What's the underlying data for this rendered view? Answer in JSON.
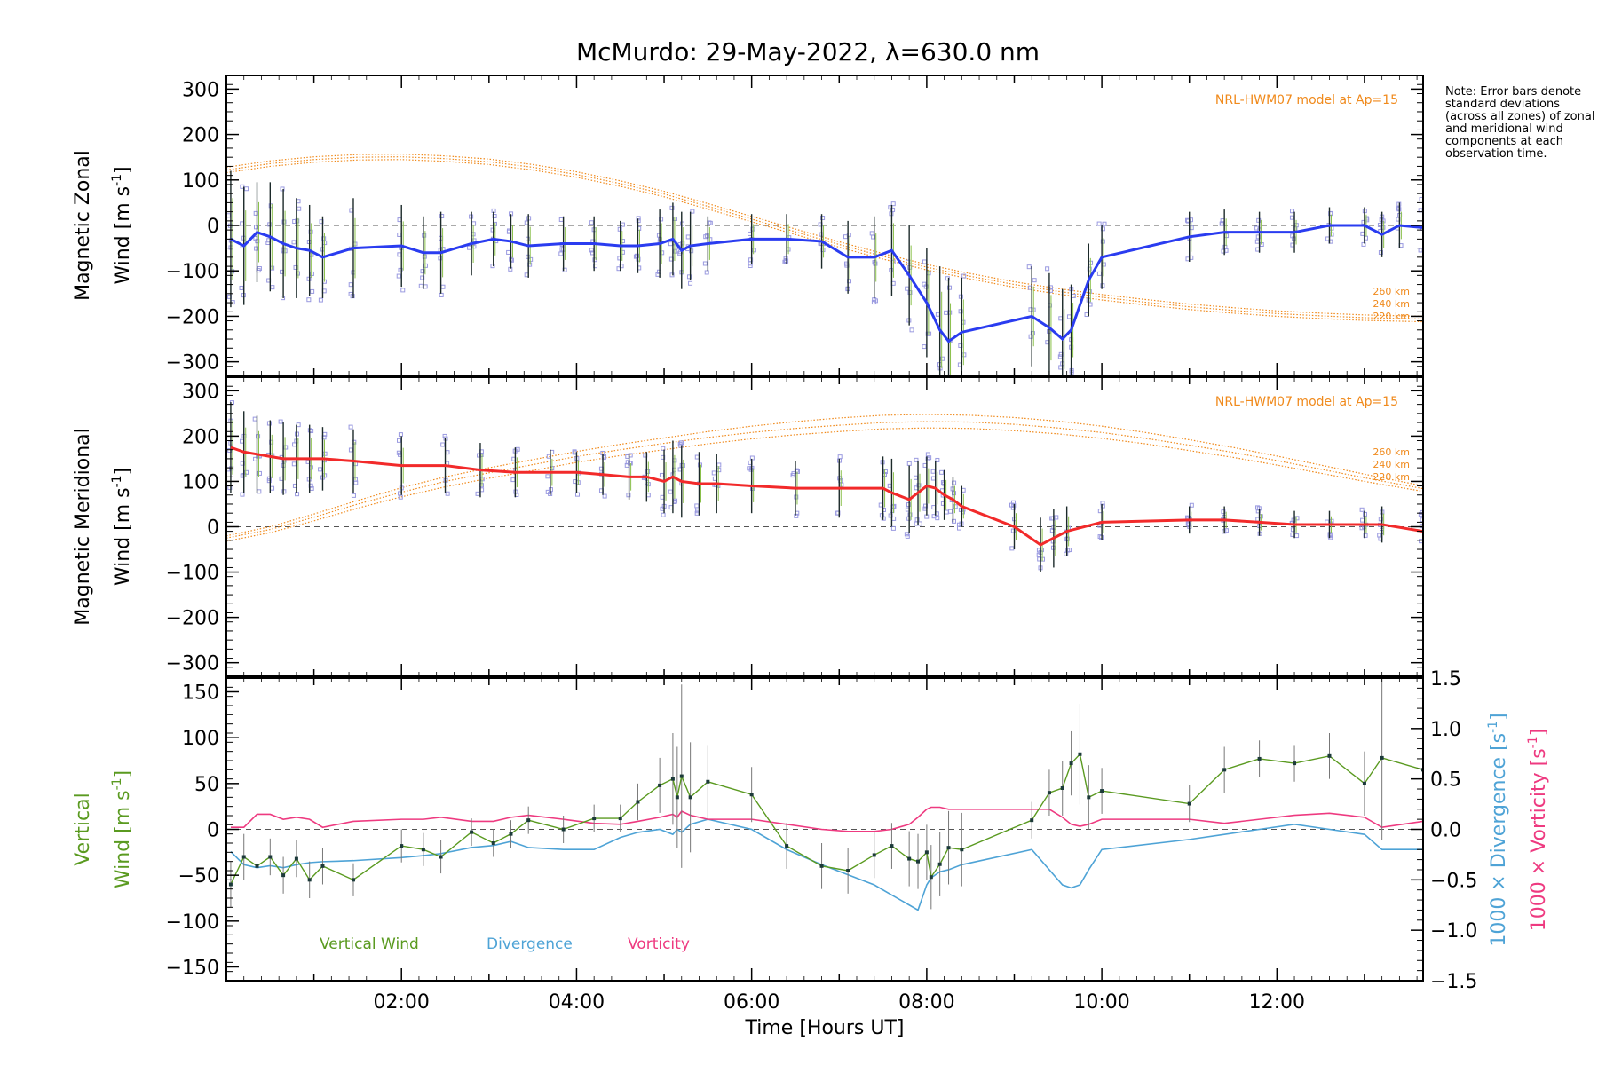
{
  "title": "McMurdo: 29-May-2022, λ=630.0 nm",
  "note": "Note: Error bars denote standard deviations (across all zones) of zonal and meridional wind components at each observation time.",
  "colors": {
    "zonal": "#2a3cf0",
    "meridional": "#f22a2a",
    "model": "#f08a1c",
    "scatter": "#9a9ae0",
    "vertical": "#5a9a20",
    "divergence": "#4ea3d6",
    "vorticity": "#ee3a80",
    "errorbar": "#1c2a2a"
  },
  "panels": {
    "zonal": {
      "ylabel_line1": "Magnetic Zonal",
      "ylabel_line2": "Wind",
      "unit": "[m s",
      "unit_exp": "-1",
      "unit_close": "]"
    },
    "meridional": {
      "ylabel_line1": "Magnetic Meridional",
      "ylabel_line2": "Wind",
      "unit": "[m s",
      "unit_exp": "-1",
      "unit_close": "]"
    },
    "vertical": {
      "ylabel_line1": "Vertical",
      "ylabel_line2": "Wind",
      "unit": "[m s",
      "unit_exp": "-1",
      "unit_close": "]"
    },
    "divergence_label": "1000 × Divergence [s",
    "vorticity_label": "1000 × Vorticity [s",
    "exp": "-1",
    "close": "]"
  },
  "model": {
    "label": "NRL-HWM07 model at Ap=15",
    "altitudes": [
      "260 km",
      "240 km",
      "220 km"
    ]
  },
  "legend": [
    "Vertical Wind",
    "Divergence",
    "Vorticity"
  ],
  "xaxis": {
    "label": "Time [Hours UT]",
    "ticks": [
      "02:00",
      "04:00",
      "06:00",
      "08:00",
      "10:00",
      "12:00"
    ],
    "range": [
      0,
      13.67
    ]
  },
  "chart_data": [
    {
      "type": "line",
      "name": "zonal",
      "ylim": [
        -330,
        330
      ],
      "yticks": [
        300,
        200,
        100,
        0,
        -100,
        -200,
        -300
      ],
      "x": [
        0.05,
        0.2,
        0.35,
        0.5,
        0.65,
        0.8,
        0.95,
        1.1,
        1.45,
        2.0,
        2.25,
        2.45,
        2.8,
        3.05,
        3.25,
        3.45,
        3.85,
        4.2,
        4.5,
        4.7,
        4.95,
        5.1,
        5.2,
        5.3,
        5.5,
        6.0,
        6.4,
        6.8,
        7.1,
        7.4,
        7.6,
        7.8,
        8.0,
        8.15,
        8.25,
        8.4,
        9.2,
        9.4,
        9.55,
        9.65,
        9.85,
        10.0,
        11.0,
        11.4,
        11.8,
        12.2,
        12.6,
        13.0,
        13.2,
        13.4,
        13.67
      ],
      "zonal": [
        -30,
        -45,
        -15,
        -25,
        -40,
        -50,
        -55,
        -70,
        -50,
        -45,
        -60,
        -60,
        -40,
        -30,
        -35,
        -45,
        -40,
        -40,
        -45,
        -45,
        -40,
        -30,
        -55,
        -45,
        -40,
        -30,
        -30,
        -35,
        -70,
        -70,
        -55,
        -110,
        -170,
        -230,
        -255,
        -235,
        -200,
        -225,
        -250,
        -230,
        -120,
        -70,
        -25,
        -15,
        -15,
        -15,
        0,
        0,
        -20,
        0,
        -5
      ],
      "zonal_err": [
        150,
        130,
        110,
        120,
        120,
        110,
        100,
        90,
        110,
        90,
        80,
        90,
        70,
        60,
        60,
        70,
        60,
        60,
        55,
        60,
        75,
        80,
        85,
        75,
        60,
        55,
        55,
        60,
        80,
        90,
        100,
        110,
        120,
        140,
        140,
        120,
        110,
        120,
        110,
        100,
        80,
        70,
        55,
        50,
        45,
        45,
        40,
        40,
        50,
        50,
        60
      ],
      "model": {
        "x": [
          0,
          0.5,
          1.0,
          1.5,
          2.0,
          2.5,
          3.0,
          3.5,
          4.0,
          4.5,
          5.0,
          5.5,
          6.0,
          6.5,
          7.0,
          7.5,
          8.0,
          8.5,
          9.0,
          9.5,
          10.0,
          10.5,
          11.0,
          11.5,
          12.0,
          12.5,
          13.0,
          13.67
        ],
        "h260": [
          128,
          142,
          151,
          156,
          157,
          153,
          146,
          134,
          118,
          98,
          75,
          48,
          20,
          -8,
          -36,
          -62,
          -86,
          -106,
          -124,
          -139,
          -152,
          -163,
          -173,
          -181,
          -188,
          -193,
          -197,
          -200
        ],
        "h240": [
          122,
          136,
          145,
          150,
          151,
          147,
          140,
          128,
          112,
          92,
          69,
          42,
          14,
          -14,
          -42,
          -68,
          -92,
          -112,
          -130,
          -145,
          -158,
          -169,
          -179,
          -187,
          -194,
          -199,
          -203,
          -206
        ],
        "h220": [
          116,
          130,
          139,
          144,
          145,
          141,
          134,
          122,
          106,
          86,
          63,
          36,
          8,
          -20,
          -48,
          -74,
          -98,
          -118,
          -136,
          -151,
          -164,
          -175,
          -185,
          -193,
          -200,
          -205,
          -209,
          -212
        ]
      }
    },
    {
      "type": "line",
      "name": "meridional",
      "ylim": [
        -330,
        330
      ],
      "yticks": [
        300,
        200,
        100,
        0,
        -100,
        -200,
        -300
      ],
      "x": [
        0.05,
        0.2,
        0.35,
        0.5,
        0.65,
        0.8,
        0.95,
        1.1,
        1.45,
        2.0,
        2.5,
        2.9,
        3.3,
        3.7,
        4.0,
        4.3,
        4.6,
        4.8,
        5.0,
        5.1,
        5.2,
        5.4,
        5.6,
        6.0,
        6.5,
        7.0,
        7.5,
        7.6,
        7.8,
        7.9,
        8.0,
        8.1,
        8.2,
        8.3,
        8.4,
        9.0,
        9.3,
        9.45,
        9.6,
        10.0,
        11.0,
        11.4,
        11.8,
        12.2,
        12.6,
        13.0,
        13.2,
        13.67
      ],
      "meridional": [
        175,
        165,
        160,
        155,
        150,
        150,
        150,
        150,
        145,
        135,
        135,
        125,
        120,
        120,
        120,
        115,
        110,
        110,
        100,
        110,
        100,
        95,
        95,
        90,
        85,
        85,
        85,
        75,
        60,
        75,
        90,
        85,
        70,
        60,
        45,
        0,
        -40,
        -25,
        -10,
        10,
        15,
        15,
        10,
        5,
        5,
        5,
        5,
        -10
      ],
      "meridional_err": [
        100,
        90,
        85,
        80,
        80,
        75,
        75,
        70,
        70,
        65,
        60,
        60,
        55,
        50,
        45,
        45,
        50,
        55,
        70,
        80,
        80,
        70,
        65,
        60,
        60,
        65,
        70,
        75,
        75,
        70,
        65,
        60,
        55,
        50,
        45,
        50,
        60,
        65,
        55,
        40,
        30,
        30,
        30,
        30,
        30,
        30,
        40,
        40
      ],
      "model": {
        "x": [
          0,
          0.5,
          1.0,
          1.5,
          2.0,
          2.5,
          3.0,
          3.5,
          4.0,
          4.5,
          5.0,
          5.5,
          6.0,
          6.5,
          7.0,
          7.5,
          8.0,
          8.5,
          9.0,
          9.5,
          10.0,
          10.5,
          11.0,
          11.5,
          12.0,
          12.5,
          13.0,
          13.67
        ],
        "h260": [
          -20,
          0,
          28,
          58,
          86,
          110,
          130,
          148,
          166,
          182,
          196,
          210,
          222,
          232,
          240,
          246,
          248,
          246,
          241,
          233,
          222,
          208,
          192,
          175,
          156,
          136,
          116,
          90
        ],
        "h240": [
          -25,
          -6,
          21,
          50,
          76,
          100,
          119,
          137,
          155,
          170,
          184,
          197,
          208,
          217,
          224,
          230,
          232,
          231,
          226,
          218,
          208,
          195,
          180,
          164,
          146,
          127,
          108,
          84
        ],
        "h220": [
          -32,
          -13,
          13,
          41,
          66,
          88,
          107,
          124,
          142,
          157,
          170,
          183,
          194,
          203,
          210,
          216,
          218,
          217,
          212,
          205,
          195,
          183,
          168,
          153,
          136,
          118,
          100,
          78
        ]
      }
    },
    {
      "type": "line",
      "name": "vertical",
      "ylim": [
        -165,
        165
      ],
      "yticks": [
        150,
        100,
        50,
        0,
        -50,
        -100,
        -150
      ],
      "y2lim": [
        -1.5,
        1.5
      ],
      "y2ticks": [
        1.5,
        1.0,
        0.5,
        0.0,
        -0.5,
        -1.0,
        -1.5
      ],
      "y2ticklabels": [
        "1.5",
        "1.0",
        "0.5",
        "0.0",
        "−0.5",
        "−1.0",
        "−1.5"
      ],
      "x": [
        0.05,
        0.2,
        0.35,
        0.5,
        0.65,
        0.8,
        0.95,
        1.1,
        1.45,
        2.0,
        2.25,
        2.45,
        2.8,
        3.05,
        3.25,
        3.45,
        3.85,
        4.2,
        4.5,
        4.7,
        4.95,
        5.1,
        5.15,
        5.2,
        5.3,
        5.5,
        6.0,
        6.4,
        6.8,
        7.1,
        7.4,
        7.6,
        7.8,
        7.9,
        8.0,
        8.05,
        8.15,
        8.25,
        8.4,
        9.2,
        9.4,
        9.55,
        9.65,
        9.75,
        9.85,
        10.0,
        11.0,
        11.4,
        11.8,
        12.2,
        12.6,
        13.0,
        13.2,
        13.67
      ],
      "vertical": [
        -60,
        -30,
        -40,
        -30,
        -50,
        -32,
        -55,
        -40,
        -55,
        -18,
        -22,
        -30,
        -3,
        -15,
        -5,
        10,
        0,
        12,
        12,
        30,
        48,
        55,
        35,
        58,
        35,
        52,
        38,
        -18,
        -40,
        -45,
        -28,
        -18,
        -32,
        -35,
        -25,
        -52,
        -38,
        -20,
        -22,
        10,
        40,
        45,
        72,
        82,
        35,
        42,
        28,
        65,
        77,
        72,
        80,
        50,
        78,
        65
      ],
      "vertical_err": [
        25,
        25,
        20,
        20,
        20,
        20,
        20,
        20,
        18,
        18,
        18,
        18,
        15,
        15,
        15,
        15,
        15,
        15,
        15,
        20,
        30,
        50,
        55,
        100,
        60,
        40,
        30,
        25,
        25,
        25,
        25,
        25,
        30,
        30,
        30,
        35,
        35,
        40,
        40,
        20,
        25,
        30,
        35,
        55,
        35,
        25,
        20,
        25,
        20,
        20,
        25,
        35,
        90,
        35
      ],
      "divergence": [
        -0.22,
        -0.35,
        -0.38,
        -0.36,
        -0.38,
        -0.35,
        -0.33,
        -0.32,
        -0.31,
        -0.28,
        -0.26,
        -0.24,
        -0.18,
        -0.16,
        -0.12,
        -0.18,
        -0.2,
        -0.2,
        -0.08,
        -0.03,
        0.0,
        -0.05,
        0.0,
        -0.03,
        0.05,
        0.1,
        0.0,
        -0.2,
        -0.35,
        -0.45,
        -0.55,
        -0.65,
        -0.75,
        -0.8,
        -0.55,
        -0.48,
        -0.42,
        -0.4,
        -0.35,
        -0.2,
        -0.4,
        -0.55,
        -0.58,
        -0.55,
        -0.4,
        -0.2,
        -0.1,
        -0.05,
        0.0,
        0.05,
        0.0,
        -0.05,
        -0.2,
        -0.2
      ],
      "vorticity": [
        0.02,
        0.02,
        0.15,
        0.15,
        0.1,
        0.12,
        0.1,
        0.02,
        0.08,
        0.1,
        0.1,
        0.12,
        0.08,
        0.08,
        0.12,
        0.14,
        0.1,
        0.06,
        0.05,
        0.08,
        0.12,
        0.15,
        0.12,
        0.18,
        0.14,
        0.1,
        0.1,
        0.05,
        0.0,
        -0.02,
        -0.02,
        0.0,
        0.05,
        0.12,
        0.2,
        0.22,
        0.22,
        0.2,
        0.2,
        0.2,
        0.2,
        0.12,
        0.05,
        0.03,
        0.05,
        0.1,
        0.1,
        0.06,
        0.1,
        0.14,
        0.16,
        0.12,
        0.02,
        0.08
      ]
    }
  ]
}
